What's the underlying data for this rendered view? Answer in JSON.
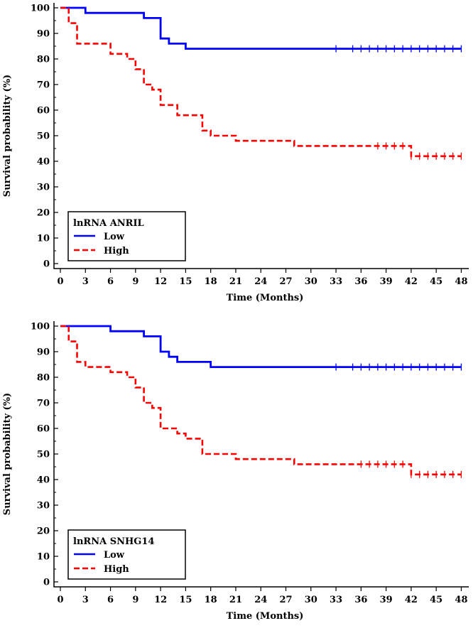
{
  "chart_data": [
    {
      "type": "line",
      "subtype": "kaplan-meier",
      "xlabel": "Time (Months)",
      "ylabel": "Survival probability (%)",
      "xlim": [
        0,
        51
      ],
      "ylim": [
        0,
        100
      ],
      "xticks": [
        0,
        3,
        6,
        9,
        12,
        15,
        18,
        21,
        24,
        27,
        30,
        33,
        36,
        39,
        42,
        45,
        48,
        51
      ],
      "yticks": [
        0,
        10,
        20,
        30,
        40,
        50,
        60,
        70,
        80,
        90,
        100
      ],
      "legend": {
        "title": "lnRNA ANRIL",
        "position": "bottom-left"
      },
      "series": [
        {
          "name": "Low",
          "color": "#0000ff",
          "dash": "solid",
          "steps": [
            [
              0,
              100
            ],
            [
              3,
              98
            ],
            [
              10,
              96
            ],
            [
              12,
              88
            ],
            [
              13,
              86
            ],
            [
              15,
              84
            ],
            [
              48,
              84
            ]
          ],
          "censored": [
            33,
            35,
            36,
            37,
            38,
            39,
            40,
            41,
            42,
            43,
            44,
            45,
            46,
            47,
            48
          ]
        },
        {
          "name": "High",
          "color": "#ff0000",
          "dash": "dashed",
          "steps": [
            [
              0,
              100
            ],
            [
              1,
              94
            ],
            [
              2,
              86
            ],
            [
              6,
              82
            ],
            [
              8,
              80
            ],
            [
              9,
              76
            ],
            [
              10,
              70
            ],
            [
              11,
              68
            ],
            [
              12,
              62
            ],
            [
              14,
              58
            ],
            [
              17,
              52
            ],
            [
              18,
              50
            ],
            [
              21,
              48
            ],
            [
              28,
              46
            ],
            [
              42,
              42
            ],
            [
              48,
              42
            ]
          ],
          "censored": [
            38,
            39,
            40,
            41,
            42,
            43,
            44,
            45,
            46,
            47,
            48
          ]
        }
      ]
    },
    {
      "type": "line",
      "subtype": "kaplan-meier",
      "xlabel": "Time (Months)",
      "ylabel": "Survival probability (%)",
      "xlim": [
        0,
        51
      ],
      "ylim": [
        0,
        100
      ],
      "xticks": [
        0,
        3,
        6,
        9,
        12,
        15,
        18,
        21,
        24,
        27,
        30,
        33,
        36,
        39,
        42,
        45,
        48,
        51
      ],
      "yticks": [
        0,
        10,
        20,
        30,
        40,
        50,
        60,
        70,
        80,
        90,
        100
      ],
      "legend": {
        "title": "lnRNA SNHG14",
        "position": "bottom-left"
      },
      "series": [
        {
          "name": "Low",
          "color": "#0000ff",
          "dash": "solid",
          "steps": [
            [
              0,
              100
            ],
            [
              6,
              98
            ],
            [
              10,
              96
            ],
            [
              12,
              90
            ],
            [
              13,
              88
            ],
            [
              14,
              86
            ],
            [
              18,
              84
            ],
            [
              48,
              84
            ]
          ],
          "censored": [
            33,
            35,
            36,
            37,
            38,
            39,
            40,
            41,
            42,
            43,
            44,
            45,
            46,
            47,
            48
          ]
        },
        {
          "name": "High",
          "color": "#ff0000",
          "dash": "dashed",
          "steps": [
            [
              0,
              100
            ],
            [
              1,
              94
            ],
            [
              2,
              86
            ],
            [
              3,
              84
            ],
            [
              6,
              82
            ],
            [
              8,
              80
            ],
            [
              9,
              76
            ],
            [
              10,
              70
            ],
            [
              11,
              68
            ],
            [
              12,
              60
            ],
            [
              14,
              58
            ],
            [
              15,
              56
            ],
            [
              17,
              50
            ],
            [
              21,
              48
            ],
            [
              28,
              46
            ],
            [
              42,
              42
            ],
            [
              48,
              42
            ]
          ],
          "censored": [
            36,
            37,
            38,
            39,
            40,
            41,
            42,
            43,
            44,
            45,
            46,
            47,
            48
          ]
        }
      ]
    }
  ]
}
